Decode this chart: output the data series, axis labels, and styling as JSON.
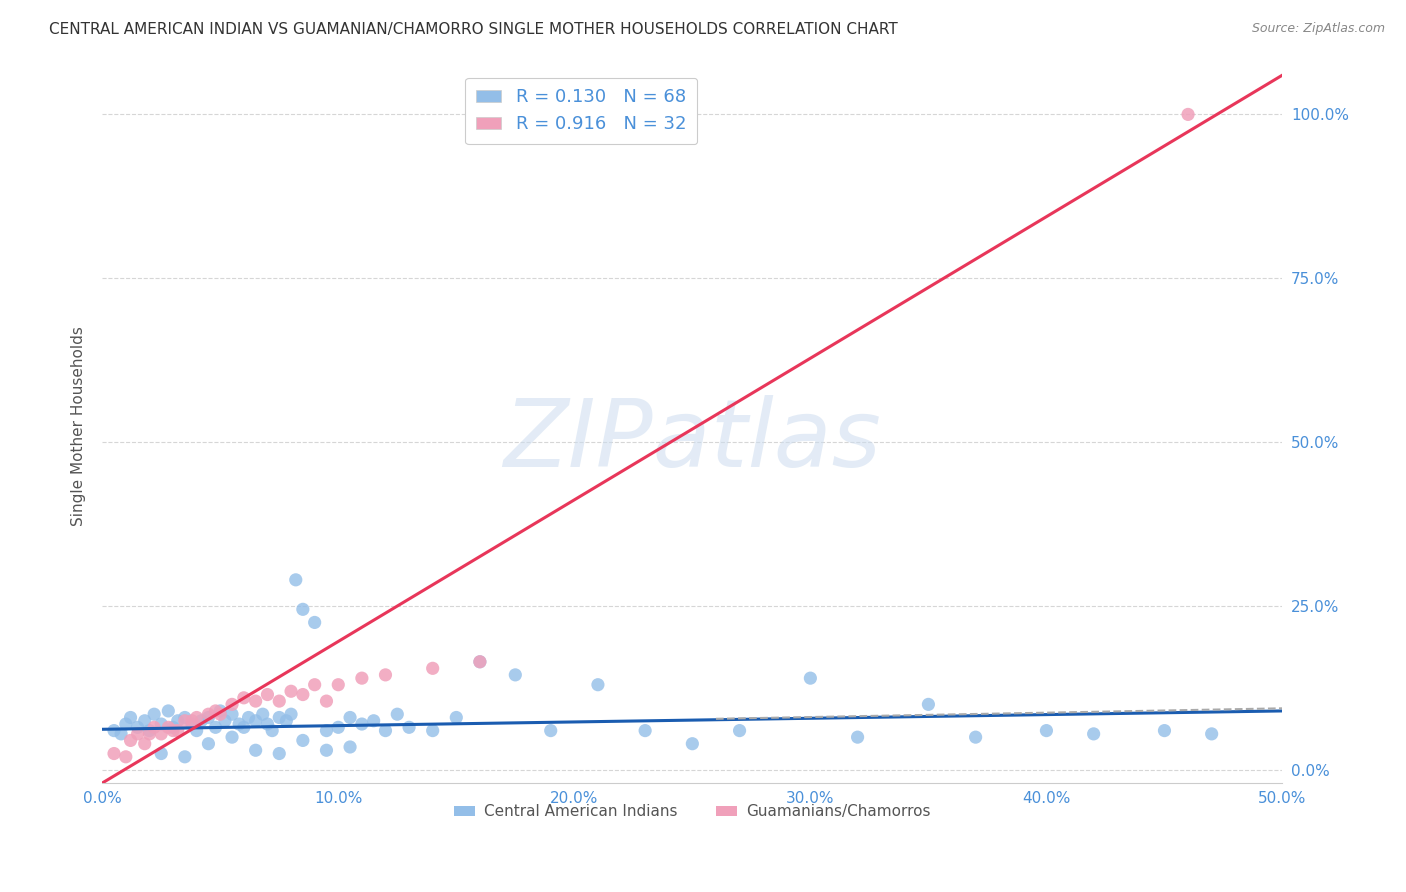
{
  "title": "CENTRAL AMERICAN INDIAN VS GUAMANIAN/CHAMORRO SINGLE MOTHER HOUSEHOLDS CORRELATION CHART",
  "source": "Source: ZipAtlas.com",
  "ylabel": "Single Mother Households",
  "xlim": [
    0.0,
    0.5
  ],
  "ylim": [
    -0.02,
    1.07
  ],
  "xticks": [
    0.0,
    0.1,
    0.2,
    0.3,
    0.4,
    0.5
  ],
  "yticks": [
    0.0,
    0.25,
    0.5,
    0.75,
    1.0
  ],
  "xticklabels": [
    "0.0%",
    "10.0%",
    "20.0%",
    "30.0%",
    "40.0%",
    "50.0%"
  ],
  "yticklabels_right": [
    "0.0%",
    "25.0%",
    "50.0%",
    "75.0%",
    "100.0%"
  ],
  "blue_color": "#93BEE8",
  "pink_color": "#F0A0BA",
  "blue_line_color": "#1A5CB0",
  "pink_line_color": "#E8365A",
  "blue_R": 0.13,
  "blue_N": 68,
  "pink_R": 0.916,
  "pink_N": 32,
  "watermark": "ZIPatlas",
  "legend_label_blue": "Central American Indians",
  "legend_label_pink": "Guamanians/Chamorros",
  "blue_scatter_x": [
    0.005,
    0.008,
    0.01,
    0.012,
    0.015,
    0.018,
    0.02,
    0.022,
    0.025,
    0.028,
    0.03,
    0.032,
    0.035,
    0.038,
    0.04,
    0.042,
    0.045,
    0.048,
    0.05,
    0.052,
    0.055,
    0.058,
    0.06,
    0.062,
    0.065,
    0.068,
    0.07,
    0.072,
    0.075,
    0.078,
    0.08,
    0.082,
    0.085,
    0.09,
    0.095,
    0.1,
    0.105,
    0.11,
    0.115,
    0.12,
    0.125,
    0.13,
    0.14,
    0.15,
    0.16,
    0.175,
    0.19,
    0.21,
    0.23,
    0.25,
    0.27,
    0.3,
    0.32,
    0.35,
    0.37,
    0.4,
    0.42,
    0.45,
    0.47,
    0.025,
    0.035,
    0.045,
    0.055,
    0.065,
    0.075,
    0.085,
    0.095,
    0.105
  ],
  "blue_scatter_y": [
    0.06,
    0.055,
    0.07,
    0.08,
    0.065,
    0.075,
    0.06,
    0.085,
    0.07,
    0.09,
    0.065,
    0.075,
    0.08,
    0.07,
    0.06,
    0.075,
    0.08,
    0.065,
    0.09,
    0.075,
    0.085,
    0.07,
    0.065,
    0.08,
    0.075,
    0.085,
    0.07,
    0.06,
    0.08,
    0.075,
    0.085,
    0.29,
    0.245,
    0.225,
    0.06,
    0.065,
    0.08,
    0.07,
    0.075,
    0.06,
    0.085,
    0.065,
    0.06,
    0.08,
    0.165,
    0.145,
    0.06,
    0.13,
    0.06,
    0.04,
    0.06,
    0.14,
    0.05,
    0.1,
    0.05,
    0.06,
    0.055,
    0.06,
    0.055,
    0.025,
    0.02,
    0.04,
    0.05,
    0.03,
    0.025,
    0.045,
    0.03,
    0.035
  ],
  "pink_scatter_x": [
    0.005,
    0.01,
    0.012,
    0.015,
    0.018,
    0.02,
    0.022,
    0.025,
    0.028,
    0.03,
    0.032,
    0.035,
    0.038,
    0.04,
    0.045,
    0.048,
    0.05,
    0.055,
    0.06,
    0.065,
    0.07,
    0.075,
    0.08,
    0.085,
    0.09,
    0.095,
    0.1,
    0.11,
    0.12,
    0.14,
    0.16,
    0.46
  ],
  "pink_scatter_y": [
    0.025,
    0.02,
    0.045,
    0.055,
    0.04,
    0.055,
    0.065,
    0.055,
    0.065,
    0.06,
    0.06,
    0.075,
    0.075,
    0.08,
    0.085,
    0.09,
    0.085,
    0.1,
    0.11,
    0.105,
    0.115,
    0.105,
    0.12,
    0.115,
    0.13,
    0.105,
    0.13,
    0.14,
    0.145,
    0.155,
    0.165,
    1.0
  ],
  "blue_trend_x": [
    0.0,
    0.5
  ],
  "blue_trend_y": [
    0.062,
    0.09
  ],
  "pink_trend_x": [
    0.0,
    0.5
  ],
  "pink_trend_y": [
    -0.02,
    1.06
  ],
  "dashed_line_x": [
    0.26,
    0.5
  ],
  "dashed_line_y": [
    0.078,
    0.094
  ],
  "background_color": "#ffffff",
  "grid_color": "#cccccc",
  "title_color": "#333333",
  "tick_color": "#4a90d9",
  "right_axis_color": "#4a90d9",
  "legend_text_color": "#4a90d9"
}
